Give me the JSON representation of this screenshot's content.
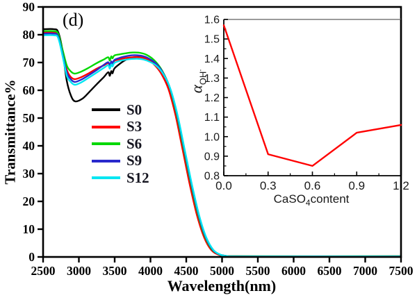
{
  "figure": {
    "panel_label": "(d)",
    "background": "#ffffff"
  },
  "chart_data": [
    {
      "id": "main",
      "type": "line",
      "title": "",
      "xlabel": "Wavelength(nm)",
      "ylabel": "Transmittance%",
      "xlim": [
        2500,
        7500
      ],
      "ylim": [
        0,
        90
      ],
      "xticks": [
        2500,
        3000,
        3500,
        4000,
        4500,
        5000,
        5500,
        6000,
        6500,
        7000,
        7500
      ],
      "yticks": [
        0,
        10,
        20,
        30,
        40,
        50,
        60,
        70,
        80,
        90
      ],
      "grid": false,
      "legend_position": "inside-left-middle",
      "series": [
        {
          "name": "S0",
          "color": "#000000",
          "points": [
            [
              2500,
              82
            ],
            [
              2650,
              82
            ],
            [
              2710,
              81
            ],
            [
              2770,
              74.5
            ],
            [
              2830,
              63.5
            ],
            [
              2890,
              58
            ],
            [
              2950,
              56
            ],
            [
              3050,
              57
            ],
            [
              3150,
              59.5
            ],
            [
              3250,
              62.2
            ],
            [
              3350,
              64.8
            ],
            [
              3410,
              66.5
            ],
            [
              3432,
              65.2
            ],
            [
              3452,
              66.9
            ],
            [
              3470,
              66.1
            ],
            [
              3495,
              67.8
            ],
            [
              3560,
              69.3
            ],
            [
              3650,
              70.9
            ],
            [
              3750,
              71.8
            ],
            [
              3850,
              72
            ],
            [
              3950,
              71.5
            ],
            [
              4050,
              69.8
            ],
            [
              4150,
              66.7
            ],
            [
              4250,
              61.5
            ],
            [
              4350,
              52.5
            ],
            [
              4450,
              40.5
            ],
            [
              4550,
              28
            ],
            [
              4650,
              16.5
            ],
            [
              4750,
              8
            ],
            [
              4850,
              3
            ],
            [
              4950,
              1
            ],
            [
              5050,
              0.4
            ],
            [
              5200,
              0.25
            ],
            [
              7500,
              0.25
            ]
          ]
        },
        {
          "name": "S3",
          "color": "#ff0000",
          "points": [
            [
              2500,
              80.9
            ],
            [
              2650,
              80.9
            ],
            [
              2710,
              80
            ],
            [
              2770,
              74
            ],
            [
              2830,
              67.5
            ],
            [
              2880,
              65
            ],
            [
              2940,
              64
            ],
            [
              3030,
              64.7
            ],
            [
              3130,
              66
            ],
            [
              3250,
              67.8
            ],
            [
              3350,
              69
            ],
            [
              3410,
              69.8
            ],
            [
              3432,
              68.6
            ],
            [
              3452,
              70.2
            ],
            [
              3470,
              69.5
            ],
            [
              3495,
              70.6
            ],
            [
              3560,
              71.1
            ],
            [
              3650,
              71.6
            ],
            [
              3750,
              71.9
            ],
            [
              3850,
              71.9
            ],
            [
              3950,
              71.2
            ],
            [
              4050,
              69.3
            ],
            [
              4150,
              66
            ],
            [
              4250,
              60.5
            ],
            [
              4350,
              51
            ],
            [
              4450,
              38.5
            ],
            [
              4550,
              26
            ],
            [
              4650,
              15
            ],
            [
              4750,
              7
            ],
            [
              4850,
              2.5
            ],
            [
              4950,
              0.8
            ],
            [
              5050,
              0.3
            ],
            [
              5200,
              0.2
            ],
            [
              7500,
              0.2
            ]
          ]
        },
        {
          "name": "S6",
          "color": "#00d800",
          "points": [
            [
              2500,
              81.3
            ],
            [
              2650,
              81.3
            ],
            [
              2710,
              80.4
            ],
            [
              2770,
              74.8
            ],
            [
              2830,
              69
            ],
            [
              2880,
              67
            ],
            [
              2940,
              66
            ],
            [
              3030,
              66.7
            ],
            [
              3130,
              68
            ],
            [
              3250,
              69.8
            ],
            [
              3350,
              71.1
            ],
            [
              3410,
              71.9
            ],
            [
              3432,
              70.7
            ],
            [
              3452,
              72.2
            ],
            [
              3470,
              71.5
            ],
            [
              3495,
              72.5
            ],
            [
              3560,
              72.9
            ],
            [
              3650,
              73.3
            ],
            [
              3750,
              73.6
            ],
            [
              3850,
              73.5
            ],
            [
              3950,
              72.7
            ],
            [
              4060,
              70.6
            ],
            [
              4160,
              67.2
            ],
            [
              4260,
              61.6
            ],
            [
              4360,
              52
            ],
            [
              4460,
              39.5
            ],
            [
              4560,
              27
            ],
            [
              4660,
              15.7
            ],
            [
              4760,
              7.4
            ],
            [
              4860,
              2.7
            ],
            [
              4960,
              0.9
            ],
            [
              5060,
              0.35
            ],
            [
              5210,
              0.22
            ],
            [
              7500,
              0.22
            ]
          ]
        },
        {
          "name": "S9",
          "color": "#2929cc",
          "points": [
            [
              2500,
              80.4
            ],
            [
              2650,
              80.4
            ],
            [
              2710,
              79.5
            ],
            [
              2770,
              73.3
            ],
            [
              2830,
              66.5
            ],
            [
              2880,
              64.2
            ],
            [
              2940,
              63
            ],
            [
              3030,
              63.8
            ],
            [
              3130,
              65.3
            ],
            [
              3250,
              67.3
            ],
            [
              3350,
              69.2
            ],
            [
              3410,
              70.1
            ],
            [
              3432,
              68.9
            ],
            [
              3452,
              70.4
            ],
            [
              3470,
              69.7
            ],
            [
              3495,
              70.9
            ],
            [
              3560,
              71.6
            ],
            [
              3650,
              72.2
            ],
            [
              3750,
              72.6
            ],
            [
              3850,
              72.5
            ],
            [
              3950,
              71.8
            ],
            [
              4070,
              69.8
            ],
            [
              4170,
              66.5
            ],
            [
              4270,
              61
            ],
            [
              4370,
              51.5
            ],
            [
              4470,
              39
            ],
            [
              4570,
              26.5
            ],
            [
              4670,
              15.4
            ],
            [
              4770,
              7.2
            ],
            [
              4870,
              2.6
            ],
            [
              4970,
              0.85
            ],
            [
              5070,
              0.33
            ],
            [
              5220,
              0.2
            ],
            [
              7500,
              0.2
            ]
          ]
        },
        {
          "name": "S12",
          "color": "#00e6f2",
          "points": [
            [
              2500,
              79.8
            ],
            [
              2650,
              79.8
            ],
            [
              2710,
              78.9
            ],
            [
              2770,
              72.6
            ],
            [
              2830,
              65.3
            ],
            [
              2880,
              63.2
            ],
            [
              2940,
              62
            ],
            [
              3030,
              62.8
            ],
            [
              3130,
              64.4
            ],
            [
              3250,
              66.4
            ],
            [
              3350,
              68.1
            ],
            [
              3410,
              69
            ],
            [
              3432,
              67.8
            ],
            [
              3452,
              69.3
            ],
            [
              3470,
              68.6
            ],
            [
              3495,
              69.8
            ],
            [
              3560,
              70.5
            ],
            [
              3650,
              71
            ],
            [
              3750,
              71.3
            ],
            [
              3850,
              71.3
            ],
            [
              3950,
              70.7
            ],
            [
              4080,
              68.9
            ],
            [
              4180,
              65.8
            ],
            [
              4280,
              60.4
            ],
            [
              4380,
              50.9
            ],
            [
              4480,
              38.4
            ],
            [
              4580,
              26
            ],
            [
              4680,
              15
            ],
            [
              4780,
              7
            ],
            [
              4880,
              2.5
            ],
            [
              4980,
              0.8
            ],
            [
              5080,
              0.3
            ],
            [
              5230,
              0.2
            ],
            [
              7500,
              0.2
            ]
          ]
        }
      ]
    },
    {
      "id": "inset",
      "type": "line",
      "title": "",
      "xlabel": {
        "prefix": "CaSO",
        "sub": "4",
        "suffix": "content"
      },
      "ylabel": {
        "main": "α",
        "sub": "OH",
        "sup": "-"
      },
      "xlim": [
        0,
        1.2
      ],
      "ylim": [
        0.8,
        1.6
      ],
      "xticks": [
        0.0,
        0.3,
        0.6,
        0.9,
        1.2
      ],
      "yticks": [
        0.8,
        0.9,
        1.0,
        1.1,
        1.2,
        1.3,
        1.4,
        1.5,
        1.6
      ],
      "grid": false,
      "series": [
        {
          "name": "alpha-OH",
          "color": "#ff0000",
          "x": [
            0.0,
            0.3,
            0.6,
            0.9,
            1.2
          ],
          "y": [
            1.57,
            0.91,
            0.85,
            1.02,
            1.06
          ]
        }
      ]
    }
  ],
  "legend": {
    "items": [
      {
        "label": "S0",
        "color": "#000000"
      },
      {
        "label": "S3",
        "color": "#ff0000"
      },
      {
        "label": "S6",
        "color": "#00d800"
      },
      {
        "label": "S9",
        "color": "#2929cc"
      },
      {
        "label": "S12",
        "color": "#00e6f2"
      }
    ]
  }
}
